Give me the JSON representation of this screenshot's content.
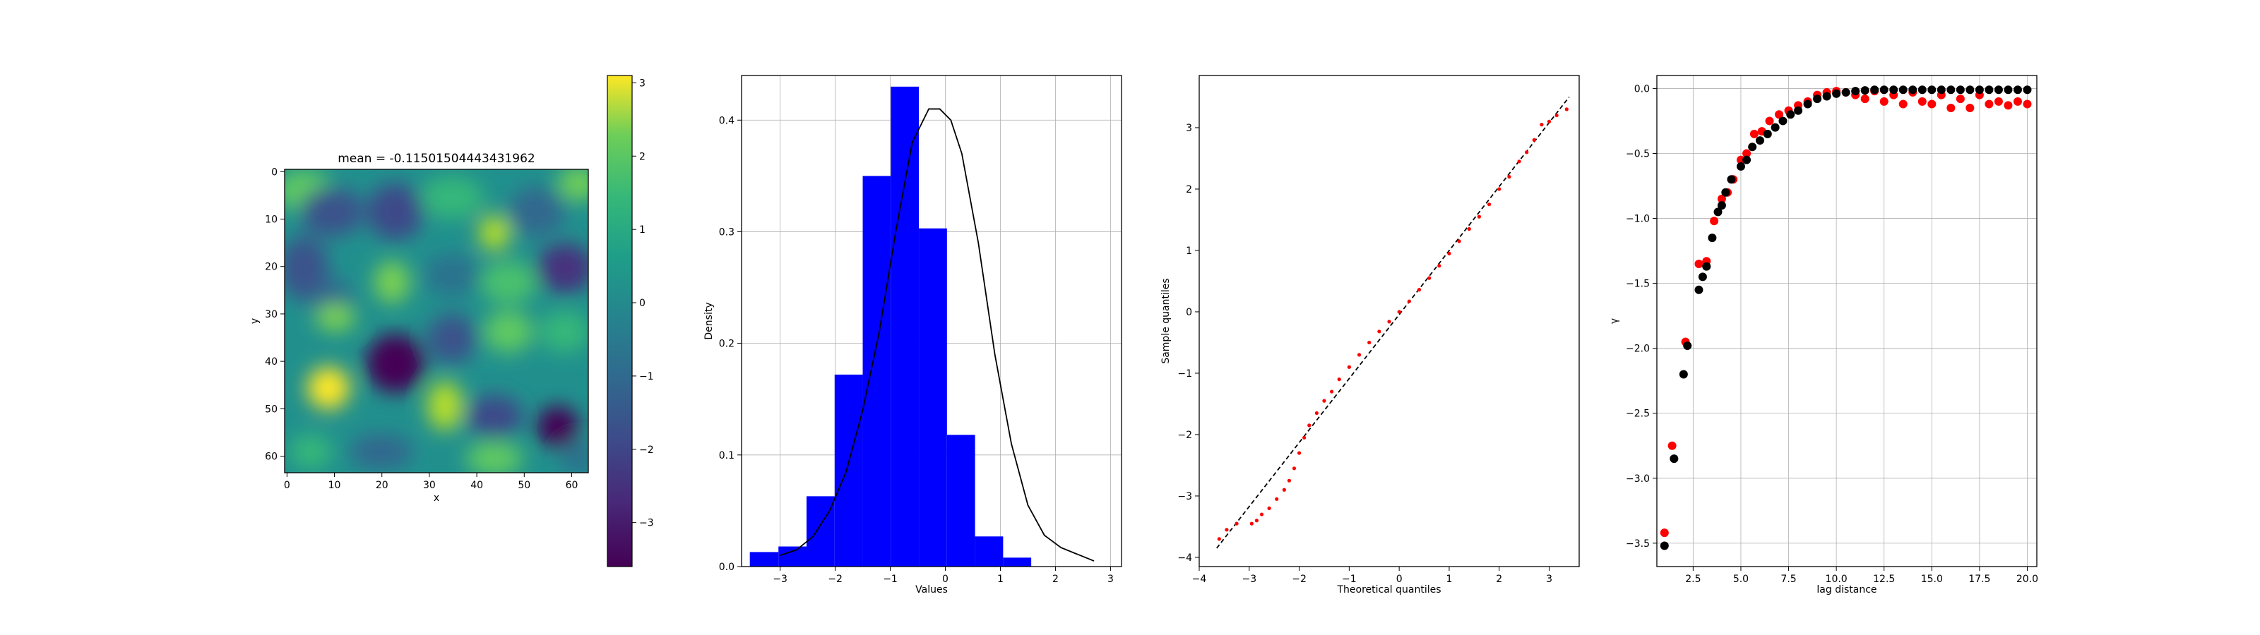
{
  "chart_data": [
    {
      "type": "heatmap",
      "title": "mean = -0.11501504443431962",
      "xlabel": "x",
      "ylabel": "y",
      "xlim": [
        0,
        64
      ],
      "ylim": [
        64,
        0
      ],
      "xticks": [
        "0",
        "10",
        "20",
        "30",
        "40",
        "50",
        "60"
      ],
      "yticks": [
        "0",
        "10",
        "20",
        "30",
        "40",
        "50",
        "60"
      ],
      "colormap": "viridis",
      "colorbar": {
        "ticks": [
          "3",
          "2",
          "1",
          "0",
          "−1",
          "−2",
          "−3"
        ],
        "range": [
          -3.6,
          3.1
        ]
      }
    },
    {
      "type": "bar",
      "title": "",
      "xlabel": "Values",
      "ylabel": "Density",
      "xlim": [
        -3.7,
        3.2
      ],
      "ylim": [
        0,
        0.44
      ],
      "grid": true,
      "bar_color": "#0000ff",
      "curve_color": "#000000",
      "xticks": [
        -3,
        -2,
        -1,
        0,
        1,
        2,
        3
      ],
      "xtick_labels": [
        "−3",
        "−2",
        "−1",
        "0",
        "1",
        "2",
        "3"
      ],
      "yticks": [
        0.0,
        0.1,
        0.2,
        0.3,
        0.4
      ],
      "ytick_labels": [
        "0.0",
        "0.1",
        "0.2",
        "0.3",
        "0.4"
      ],
      "bins": [
        {
          "x0": -3.55,
          "x1": -3.03,
          "h": 0.013
        },
        {
          "x0": -3.03,
          "x1": -2.52,
          "h": 0.018
        },
        {
          "x0": -2.52,
          "x1": -2.01,
          "h": 0.063
        },
        {
          "x0": -2.01,
          "x1": -1.5,
          "h": 0.172
        },
        {
          "x0": -1.5,
          "x1": -0.99,
          "h": 0.35
        },
        {
          "x0": -0.99,
          "x1": -0.48,
          "h": 0.43
        },
        {
          "x0": -0.48,
          "x1": 0.03,
          "h": 0.303
        },
        {
          "x0": 0.03,
          "x1": 0.54,
          "h": 0.118
        },
        {
          "x0": 0.54,
          "x1": 1.05,
          "h": 0.027
        },
        {
          "x0": 1.05,
          "x1": 1.56,
          "h": 0.008
        }
      ],
      "curve": {
        "x": [
          -3.0,
          -2.7,
          -2.4,
          -2.1,
          -1.8,
          -1.5,
          -1.2,
          -0.9,
          -0.6,
          -0.3,
          -0.1,
          0.1,
          0.3,
          0.6,
          0.9,
          1.2,
          1.5,
          1.8,
          2.1,
          2.4,
          2.7
        ],
        "y": [
          0.01,
          0.015,
          0.027,
          0.05,
          0.085,
          0.14,
          0.21,
          0.3,
          0.38,
          0.41,
          0.41,
          0.4,
          0.37,
          0.29,
          0.19,
          0.11,
          0.055,
          0.028,
          0.017,
          0.011,
          0.005
        ]
      }
    },
    {
      "type": "scatter",
      "title": "",
      "xlabel": "Theoretical quantiles",
      "ylabel": "Sample quantiles",
      "xlim": [
        -4.0,
        3.6
      ],
      "ylim": [
        -4.15,
        3.85
      ],
      "point_color": "#ff0000",
      "line_color": "#000000",
      "xticks": [
        -4,
        -3,
        -2,
        -1,
        0,
        1,
        2,
        3
      ],
      "xtick_labels": [
        "−4",
        "−3",
        "−2",
        "−1",
        "0",
        "1",
        "2",
        "3"
      ],
      "yticks": [
        -4,
        -3,
        -2,
        -1,
        0,
        1,
        2,
        3
      ],
      "ytick_labels": [
        "−4",
        "−3",
        "−2",
        "−1",
        "0",
        "1",
        "2",
        "3"
      ],
      "reference_line": {
        "x": [
          -3.65,
          3.4
        ],
        "y": [
          -3.85,
          3.5
        ]
      },
      "series": [
        {
          "x": [
            -3.6,
            -3.45,
            -3.25,
            -2.95,
            -2.85,
            -2.75,
            -2.6,
            -2.45,
            -2.3,
            -2.2,
            -2.1,
            -2.0,
            -1.9,
            -1.8,
            -1.65,
            -1.5,
            -1.35,
            -1.2,
            -1.0,
            -0.8,
            -0.6,
            -0.4,
            -0.2,
            0.0,
            0.2,
            0.4,
            0.6,
            0.8,
            1.0,
            1.2,
            1.4,
            1.6,
            1.8,
            2.0,
            2.2,
            2.4,
            2.55,
            2.7,
            2.85,
            3.0,
            3.15,
            3.35
          ],
          "y": [
            -3.7,
            -3.55,
            -3.45,
            -3.45,
            -3.4,
            -3.3,
            -3.2,
            -3.05,
            -2.9,
            -2.75,
            -2.55,
            -2.3,
            -2.05,
            -1.85,
            -1.65,
            -1.45,
            -1.3,
            -1.1,
            -0.9,
            -0.7,
            -0.5,
            -0.32,
            -0.16,
            0.0,
            0.17,
            0.36,
            0.55,
            0.75,
            0.95,
            1.15,
            1.35,
            1.55,
            1.75,
            2.0,
            2.2,
            2.45,
            2.6,
            2.8,
            3.05,
            3.1,
            3.2,
            3.3
          ]
        }
      ]
    },
    {
      "type": "scatter",
      "title": "",
      "xlabel": "lag distance",
      "ylabel": "γ",
      "xlim": [
        0.6,
        20.5
      ],
      "ylim": [
        -3.68,
        0.1
      ],
      "grid": true,
      "xticks": [
        2.5,
        5.0,
        7.5,
        10.0,
        12.5,
        15.0,
        17.5,
        20.0
      ],
      "xtick_labels": [
        "2.5",
        "5.0",
        "7.5",
        "10.0",
        "12.5",
        "15.0",
        "17.5",
        "20.0"
      ],
      "yticks": [
        0.0,
        -0.5,
        -1.0,
        -1.5,
        -2.0,
        -2.5,
        -3.0,
        -3.5
      ],
      "ytick_labels": [
        "0.0",
        "−0.5",
        "−1.0",
        "−1.5",
        "−2.0",
        "−2.5",
        "−3.0",
        "−3.5"
      ],
      "series": [
        {
          "color": "#ff0000",
          "x": [
            1.0,
            1.4,
            2.1,
            2.8,
            3.2,
            3.6,
            4.0,
            4.3,
            4.6,
            5.0,
            5.3,
            5.7,
            6.1,
            6.5,
            7.0,
            7.5,
            8.0,
            8.5,
            9.0,
            9.5,
            10.0,
            10.5,
            11.0,
            11.5,
            12.0,
            12.5,
            13.0,
            13.5,
            14.0,
            14.5,
            15.0,
            15.5,
            16.0,
            16.5,
            17.0,
            17.5,
            18.0,
            18.5,
            19.0,
            19.5,
            20.0
          ],
          "y": [
            -3.42,
            -2.75,
            -1.95,
            -1.35,
            -1.33,
            -1.02,
            -0.85,
            -0.8,
            -0.7,
            -0.55,
            -0.5,
            -0.35,
            -0.33,
            -0.25,
            -0.2,
            -0.17,
            -0.13,
            -0.1,
            -0.05,
            -0.03,
            -0.02,
            -0.03,
            -0.05,
            -0.08,
            -0.02,
            -0.1,
            -0.05,
            -0.12,
            -0.03,
            -0.1,
            -0.12,
            -0.05,
            -0.15,
            -0.08,
            -0.15,
            -0.05,
            -0.12,
            -0.1,
            -0.13,
            -0.1,
            -0.12
          ]
        },
        {
          "color": "#000000",
          "x": [
            1.0,
            1.5,
            2.0,
            2.2,
            2.8,
            3.0,
            3.2,
            3.5,
            3.8,
            4.0,
            4.2,
            4.5,
            5.0,
            5.3,
            5.6,
            6.0,
            6.4,
            6.8,
            7.2,
            7.6,
            8.0,
            8.5,
            9.0,
            9.5,
            10.0,
            10.5,
            11.0,
            11.5,
            12.0,
            12.5,
            13.0,
            13.5,
            14.0,
            14.5,
            15.0,
            15.5,
            16.0,
            16.5,
            17.0,
            17.5,
            18.0,
            18.5,
            19.0,
            19.5,
            20.0
          ],
          "y": [
            -3.52,
            -2.85,
            -2.2,
            -1.98,
            -1.55,
            -1.45,
            -1.37,
            -1.15,
            -0.95,
            -0.9,
            -0.8,
            -0.7,
            -0.6,
            -0.55,
            -0.45,
            -0.4,
            -0.35,
            -0.3,
            -0.25,
            -0.2,
            -0.17,
            -0.12,
            -0.08,
            -0.06,
            -0.04,
            -0.03,
            -0.02,
            -0.015,
            -0.01,
            -0.01,
            -0.01,
            -0.01,
            -0.01,
            -0.01,
            -0.01,
            -0.01,
            -0.01,
            -0.01,
            -0.01,
            -0.01,
            -0.01,
            -0.01,
            -0.01,
            -0.01,
            -0.01
          ]
        }
      ]
    }
  ]
}
